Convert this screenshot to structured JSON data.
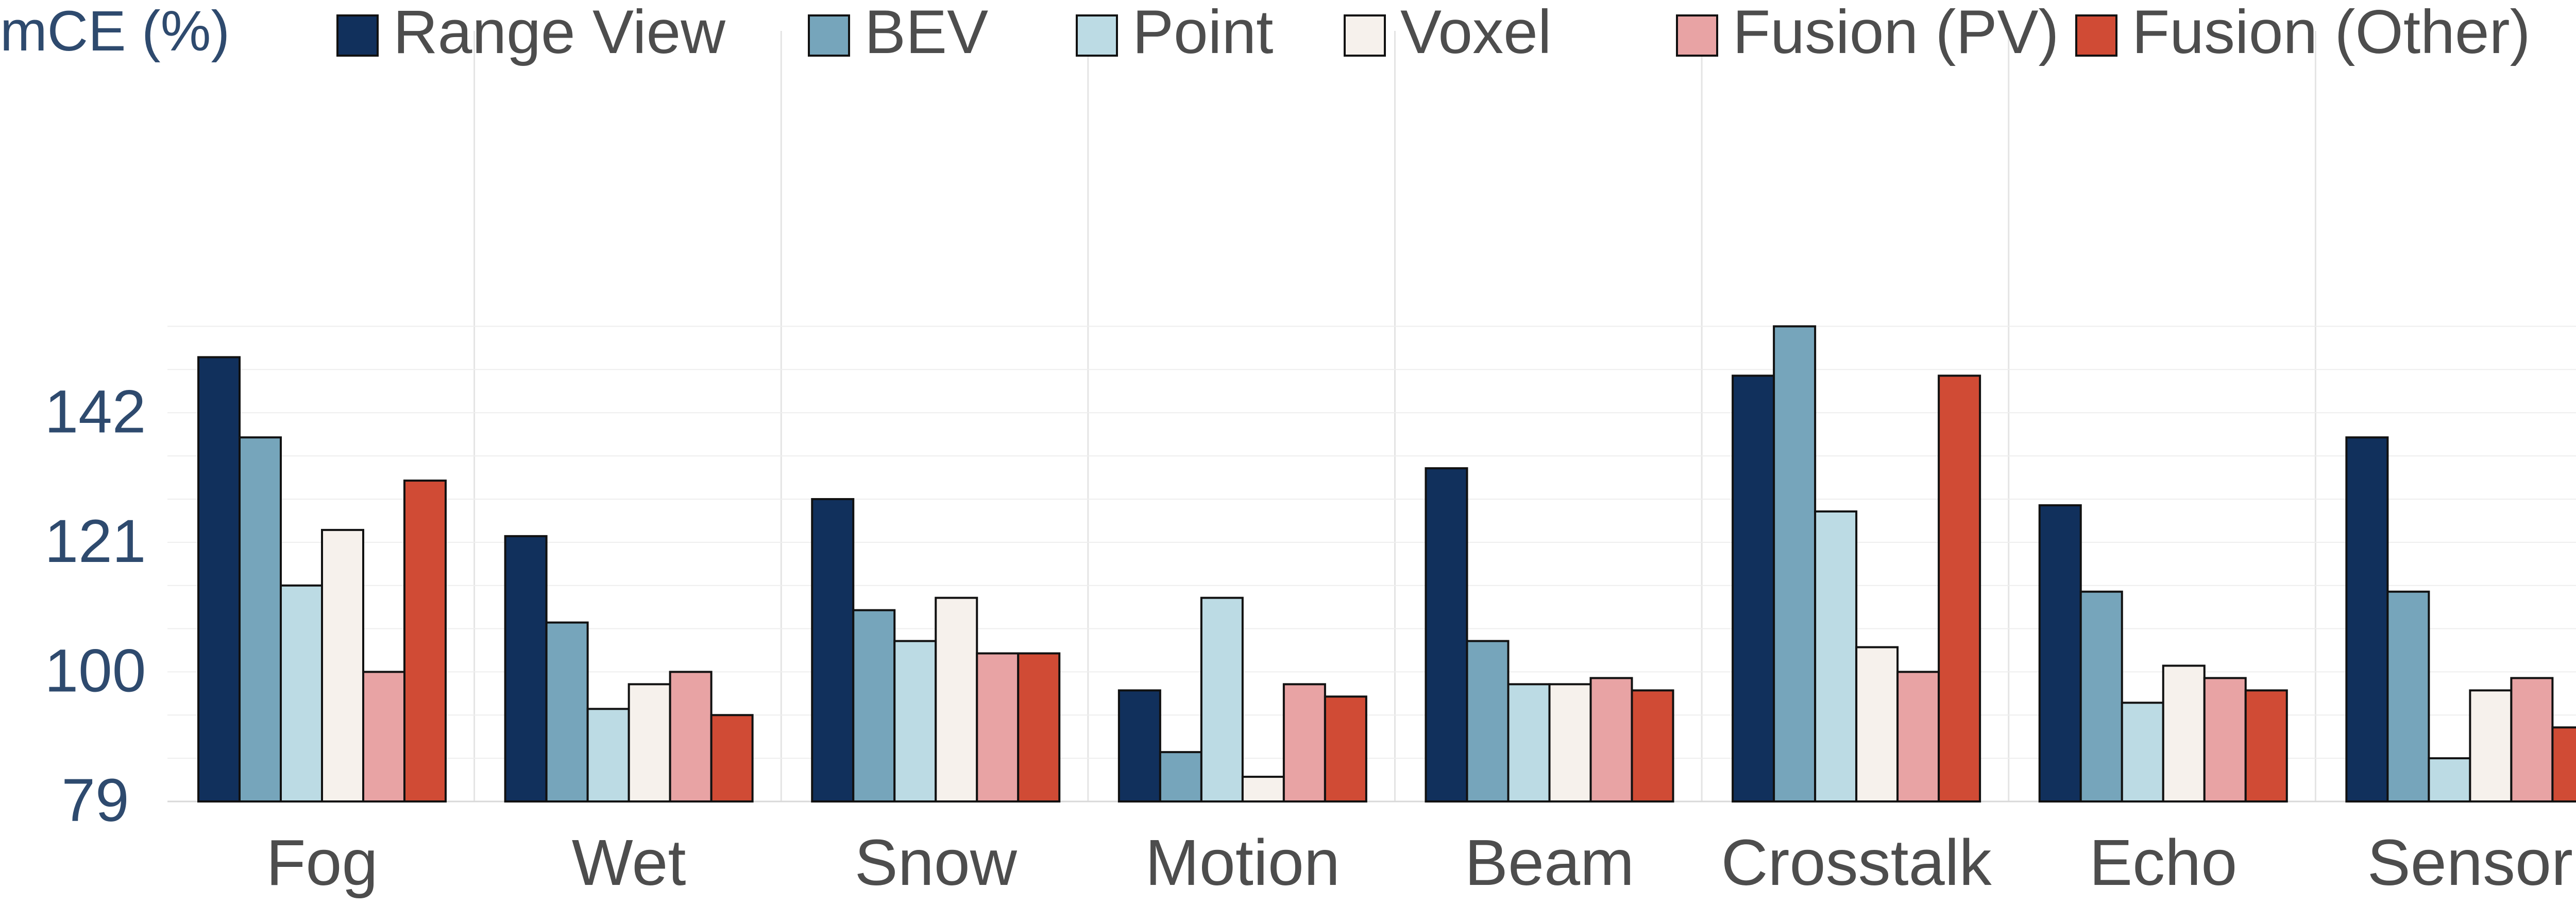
{
  "chart_data": {
    "type": "bar",
    "ylabel": "mCE (%)",
    "categories": [
      "Fog",
      "Wet",
      "Snow",
      "Motion",
      "Beam",
      "Crosstalk",
      "Echo",
      "Sensor"
    ],
    "yticks": [
      79,
      100,
      121,
      142
    ],
    "ylim": [
      79,
      161
    ],
    "grid": true,
    "legend_position": "top",
    "series": [
      {
        "name": "Range View",
        "color": "#11305c",
        "values": [
          151,
          122,
          128,
          97,
          133,
          148,
          127,
          138
        ]
      },
      {
        "name": "BEV",
        "color": "#76a5bb",
        "values": [
          138,
          108,
          110,
          87,
          105,
          156,
          113,
          113
        ]
      },
      {
        "name": "Point",
        "color": "#bcdbe4",
        "values": [
          114,
          94,
          105,
          112,
          98,
          126,
          95,
          86
        ]
      },
      {
        "name": "Voxel",
        "color": "#f6f1ec",
        "values": [
          123,
          98,
          112,
          83,
          98,
          104,
          101,
          97
        ]
      },
      {
        "name": "Fusion (PV)",
        "color": "#e8a3a4",
        "values": [
          100,
          100,
          103,
          98,
          99,
          100,
          99,
          99
        ]
      },
      {
        "name": "Fusion (Other)",
        "color": "#d04b35",
        "values": [
          131,
          93,
          103,
          96,
          97,
          148,
          97,
          91
        ]
      }
    ]
  }
}
